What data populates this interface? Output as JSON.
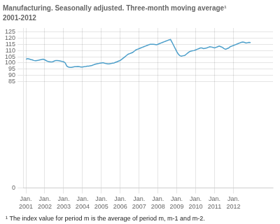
{
  "chart_data": {
    "type": "line",
    "title": "Manufacturing. Seasonally adjusted. Three-month moving average¹",
    "subtitle": "2001-2012",
    "footnote": "¹ The index value for period m is the average of period m, m-1 and m-2.",
    "color": "#4d9fca",
    "grid": true,
    "xlim": [
      2000.85,
      2014.1
    ],
    "xticks": [
      {
        "value": 2001,
        "label": "Jan.\n2001"
      },
      {
        "value": 2002,
        "label": "Jan.\n2002"
      },
      {
        "value": 2003,
        "label": "Jan.\n2003"
      },
      {
        "value": 2004,
        "label": "Jan.\n2004"
      },
      {
        "value": 2005,
        "label": "Jan.\n2005"
      },
      {
        "value": 2006,
        "label": "Jan.\n2006"
      },
      {
        "value": 2007,
        "label": "Jan.\n2007"
      },
      {
        "value": 2008,
        "label": "Jan.\n2008"
      },
      {
        "value": 2009,
        "label": "Jan.\n2009"
      },
      {
        "value": 2010,
        "label": "Jan.\n2010"
      },
      {
        "value": 2011,
        "label": "Jan.\n2011"
      },
      {
        "value": 2012,
        "label": "Jan.\n2012"
      }
    ],
    "ylim": [
      0,
      128
    ],
    "yticks": [
      0,
      85,
      90,
      95,
      100,
      105,
      110,
      115,
      120,
      125
    ],
    "x": [
      2001,
      2001.083333,
      2001.166667,
      2001.25,
      2001.333333,
      2001.416667,
      2001.5,
      2001.583333,
      2001.666667,
      2001.75,
      2001.833333,
      2001.916667,
      2002,
      2002.083333,
      2002.166667,
      2002.25,
      2002.333333,
      2002.416667,
      2002.5,
      2002.583333,
      2002.666667,
      2002.75,
      2002.833333,
      2002.916667,
      2003,
      2003.083333,
      2003.166667,
      2003.25,
      2003.333333,
      2003.416667,
      2003.5,
      2003.583333,
      2003.666667,
      2003.75,
      2003.833333,
      2003.916667,
      2004,
      2004.083333,
      2004.166667,
      2004.25,
      2004.333333,
      2004.416667,
      2004.5,
      2004.583333,
      2004.666667,
      2004.75,
      2004.833333,
      2004.916667,
      2005,
      2005.083333,
      2005.166667,
      2005.25,
      2005.333333,
      2005.416667,
      2005.5,
      2005.583333,
      2005.666667,
      2005.75,
      2005.833333,
      2005.916667,
      2006,
      2006.083333,
      2006.166667,
      2006.25,
      2006.333333,
      2006.416667,
      2006.5,
      2006.583333,
      2006.666667,
      2006.75,
      2006.833333,
      2006.916667,
      2007,
      2007.083333,
      2007.166667,
      2007.25,
      2007.333333,
      2007.416667,
      2007.5,
      2007.583333,
      2007.666667,
      2007.75,
      2007.833333,
      2007.916667,
      2008,
      2008.083333,
      2008.166667,
      2008.25,
      2008.333333,
      2008.416667,
      2008.5,
      2008.583333,
      2008.666667,
      2008.75,
      2008.833333,
      2008.916667,
      2009,
      2009.083333,
      2009.166667,
      2009.25,
      2009.333333,
      2009.416667,
      2009.5,
      2009.583333,
      2009.666667,
      2009.75,
      2009.833333,
      2009.916667,
      2010,
      2010.083333,
      2010.166667,
      2010.25,
      2010.333333,
      2010.416667,
      2010.5,
      2010.583333,
      2010.666667,
      2010.75,
      2010.833333,
      2010.916667,
      2011,
      2011.083333,
      2011.166667,
      2011.25,
      2011.333333,
      2011.416667,
      2011.5,
      2011.583333,
      2011.666667,
      2011.75,
      2011.833333,
      2011.916667,
      2012,
      2012.083333,
      2012.166667,
      2012.25,
      2012.333333,
      2012.416667,
      2012.5,
      2012.583333,
      2012.666667,
      2012.75,
      2012.833333,
      2012.916667
    ],
    "values": [
      103.0,
      103.5,
      103.2,
      102.8,
      102.5,
      102.0,
      101.8,
      102.0,
      102.2,
      102.5,
      102.8,
      103.0,
      102.5,
      101.8,
      101.2,
      101.0,
      100.8,
      101.0,
      101.5,
      102.0,
      102.0,
      101.8,
      101.5,
      101.2,
      101.0,
      100.0,
      97.5,
      96.8,
      96.5,
      96.5,
      96.8,
      97.0,
      97.0,
      97.2,
      97.0,
      96.8,
      96.8,
      97.0,
      97.2,
      97.5,
      97.5,
      97.8,
      98.0,
      98.5,
      99.0,
      99.3,
      99.5,
      99.8,
      100.0,
      100.2,
      99.8,
      99.5,
      99.3,
      99.3,
      99.5,
      99.8,
      100.0,
      100.5,
      101.0,
      101.5,
      102.0,
      103.0,
      104.0,
      105.0,
      106.0,
      107.0,
      107.5,
      108.0,
      108.5,
      109.5,
      110.5,
      111.0,
      111.5,
      112.0,
      112.5,
      113.0,
      113.5,
      114.0,
      114.5,
      115.0,
      115.0,
      115.0,
      114.8,
      114.5,
      115.0,
      115.5,
      116.0,
      116.5,
      117.0,
      117.5,
      118.0,
      118.5,
      118.8,
      116.5,
      114.0,
      111.5,
      109.0,
      107.0,
      105.8,
      105.5,
      105.8,
      106.0,
      107.0,
      108.0,
      109.0,
      109.5,
      109.8,
      110.0,
      110.5,
      111.0,
      111.5,
      112.0,
      112.0,
      111.5,
      111.8,
      112.0,
      112.5,
      113.0,
      112.8,
      112.5,
      112.0,
      112.5,
      113.0,
      113.5,
      113.0,
      112.5,
      111.5,
      111.0,
      111.5,
      112.0,
      113.0,
      113.5,
      114.0,
      114.5,
      115.0,
      115.5,
      116.0,
      116.5,
      116.8,
      116.5,
      116.0,
      116.2,
      116.5,
      116.3
    ]
  }
}
